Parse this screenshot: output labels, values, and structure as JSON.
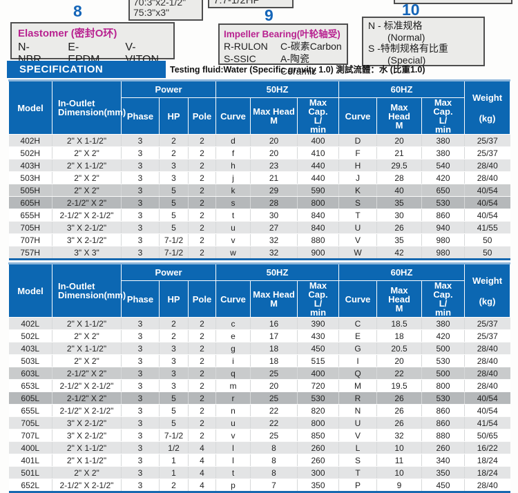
{
  "colors": {
    "header_blue": "#0c67b2",
    "accent_blue": "#1465b8",
    "magenta": "#b82290",
    "row_light": "#e3e4e5",
    "row_white": "#ffffff",
    "row_mid": "#c9cbcc",
    "row_dark": "#b5b8ba"
  },
  "top": {
    "label_8": "8",
    "label_9": "9",
    "label_10": "10",
    "partial_box_sizes": {
      "line1": "70:3\"x2-1/2\"",
      "line2": "75:3\"x3\""
    },
    "partial_box_hp": "7:7-1/2HP",
    "elastomer": {
      "title": "Elastomer (密封O环)",
      "items": [
        "N-NBR",
        "E-EPDM",
        "V-VITON"
      ]
    },
    "impeller": {
      "title": "Impeller Bearing(叶轮轴受)",
      "items": [
        "R-RULON",
        "C-碳素Carbon",
        "S-SSIC",
        "A-陶瓷Ceramic"
      ]
    },
    "spec_grade": {
      "lines": [
        "N - 标准规格",
        "(Normal)",
        "S -特制规格有比重",
        "(Special)"
      ]
    },
    "specification_label": "SPECIFICATION",
    "testing_fluid": "Testing fluid:Water (Specific gravity 1.0) 測試流體：水 (比重1.0)"
  },
  "table_header": {
    "model": "Model",
    "in_outlet": [
      "In-Outlet",
      "Dimension(mm)"
    ],
    "power": "Power",
    "phase": "Phase",
    "hp": "HP",
    "pole": "Pole",
    "hz50": "50HZ",
    "hz60": "60HZ",
    "curve": "Curve",
    "max_head": [
      "Max Head",
      "M"
    ],
    "max_cap": [
      "Max Cap.",
      "L/",
      "min"
    ],
    "weight": [
      "Weight",
      "(kg)"
    ]
  },
  "columns": [
    "model",
    "dimension",
    "phase",
    "hp",
    "pole",
    "curve_50hz",
    "max_head_50hz",
    "max_cap_50hz",
    "curve_60hz",
    "max_head_60hz",
    "max_cap_60hz",
    "weight_kg"
  ],
  "tables": [
    {
      "name": "h-series",
      "rows": [
        [
          "402H",
          "2\" X 1-1/2\"",
          "3",
          "2",
          "2",
          "d",
          "20",
          "400",
          "D",
          "20",
          "380",
          "25/37",
          "light"
        ],
        [
          "502H",
          "2\" X 2\"",
          "3",
          "2",
          "2",
          "f",
          "20",
          "410",
          "F",
          "21",
          "380",
          "25/37",
          "white"
        ],
        [
          "403H",
          "2\" X 1-1/2\"",
          "3",
          "3",
          "2",
          "h",
          "23",
          "440",
          "H",
          "29.5",
          "540",
          "28/40",
          "light"
        ],
        [
          "503H",
          "2\" X 2\"",
          "3",
          "3",
          "2",
          "j",
          "21",
          "440",
          "J",
          "28",
          "420",
          "28/40",
          "white"
        ],
        [
          "505H",
          "2\" X 2\"",
          "3",
          "5",
          "2",
          "k",
          "29",
          "590",
          "K",
          "40",
          "650",
          "40/54",
          "mid"
        ],
        [
          "605H",
          "2-1/2\" X 2\"",
          "3",
          "5",
          "2",
          "s",
          "28",
          "800",
          "S",
          "35",
          "530",
          "40/54",
          "dark"
        ],
        [
          "655H",
          "2-1/2\" X 2-1/2\"",
          "3",
          "5",
          "2",
          "t",
          "30",
          "840",
          "T",
          "30",
          "860",
          "40/54",
          "white"
        ],
        [
          "705H",
          "3\" X 2-1/2\"",
          "3",
          "5",
          "2",
          "u",
          "27",
          "840",
          "U",
          "26",
          "940",
          "41/55",
          "light"
        ],
        [
          "707H",
          "3\" X 2-1/2\"",
          "3",
          "7-1/2",
          "2",
          "v",
          "32",
          "880",
          "V",
          "35",
          "980",
          "50",
          "white"
        ],
        [
          "757H",
          "3\" X 3\"",
          "3",
          "7-1/2",
          "2",
          "w",
          "32",
          "900",
          "W",
          "42",
          "980",
          "50",
          "light"
        ]
      ]
    },
    {
      "name": "l-series",
      "rows": [
        [
          "402L",
          "2\" X 1-1/2\"",
          "3",
          "2",
          "2",
          "c",
          "16",
          "390",
          "C",
          "18.5",
          "380",
          "25/37",
          "light"
        ],
        [
          "502L",
          "2\" X 2\"",
          "3",
          "2",
          "2",
          "e",
          "17",
          "430",
          "E",
          "18",
          "420",
          "25/37",
          "white"
        ],
        [
          "403L",
          "2\" X 1-1/2\"",
          "3",
          "3",
          "2",
          "g",
          "18",
          "450",
          "G",
          "20.5",
          "500",
          "28/40",
          "light"
        ],
        [
          "503L",
          "2\" X 2\"",
          "3",
          "3",
          "2",
          "i",
          "18",
          "515",
          "I",
          "20",
          "530",
          "28/40",
          "white"
        ],
        [
          "603L",
          "2-1/2\" X 2\"",
          "3",
          "3",
          "2",
          "q",
          "25",
          "400",
          "Q",
          "22",
          "500",
          "28/40",
          "mid"
        ],
        [
          "653L",
          "2-1/2\" X 2-1/2\"",
          "3",
          "3",
          "2",
          "m",
          "20",
          "720",
          "M",
          "19.5",
          "800",
          "28/40",
          "white"
        ],
        [
          "605L",
          "2-1/2\" X 2\"",
          "3",
          "5",
          "2",
          "r",
          "25",
          "530",
          "R",
          "26",
          "530",
          "40/54",
          "dark"
        ],
        [
          "655L",
          "2-1/2\" X 2-1/2\"",
          "3",
          "5",
          "2",
          "n",
          "22",
          "820",
          "N",
          "26",
          "860",
          "40/54",
          "white"
        ],
        [
          "705L",
          "3\" X 2-1/2\"",
          "3",
          "5",
          "2",
          "u",
          "22",
          "800",
          "U",
          "26",
          "860",
          "41/54",
          "light"
        ],
        [
          "707L",
          "3\" X 2-1/2\"",
          "3",
          "7-1/2",
          "2",
          "v",
          "25",
          "850",
          "V",
          "32",
          "880",
          "50/65",
          "white"
        ],
        [
          "400L",
          "2\" X 1-1/2\"",
          "3",
          "1/2",
          "4",
          "l",
          "8",
          "260",
          "L",
          "10",
          "260",
          "16/22",
          "light"
        ],
        [
          "401L",
          "2\" X 1-1/2\"",
          "3",
          "1",
          "4",
          "l",
          "8",
          "260",
          "S",
          "11",
          "340",
          "18/24",
          "white"
        ],
        [
          "501L",
          "2\" X 2\"",
          "3",
          "1",
          "4",
          "t",
          "8",
          "300",
          "T",
          "10",
          "350",
          "18/24",
          "light"
        ],
        [
          "652L",
          "2-1/2\" X 2-1/2\"",
          "3",
          "2",
          "4",
          "p",
          "7",
          "350",
          "P",
          "9",
          "450",
          "28/40",
          "white"
        ]
      ]
    }
  ]
}
